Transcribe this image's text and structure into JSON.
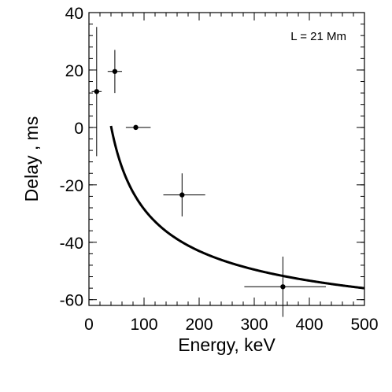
{
  "chart_data": {
    "type": "scatter",
    "title": "",
    "xlabel": "Energy, keV",
    "ylabel": "Delay , ms",
    "xlim": [
      0,
      500
    ],
    "ylim": [
      -62,
      40
    ],
    "xticks": [
      0,
      100,
      200,
      300,
      400,
      500
    ],
    "yticks": [
      -60,
      -40,
      -20,
      0,
      20,
      40
    ],
    "x_minor_step": 20,
    "y_minor_step": 4,
    "grid": false,
    "annotation": "L = 21 Mm",
    "points": [
      {
        "x": 14,
        "y": 12.5,
        "xerr_low": 9,
        "xerr_high": 9,
        "yerr_low": 22.5,
        "yerr_high": 22.5
      },
      {
        "x": 47,
        "y": 19.5,
        "xerr_low": 13,
        "xerr_high": 13,
        "yerr_low": 7.5,
        "yerr_high": 7.5
      },
      {
        "x": 85,
        "y": 0,
        "xerr_low": 18,
        "xerr_high": 27,
        "yerr_low": 0,
        "yerr_high": 0
      },
      {
        "x": 169,
        "y": -23.5,
        "xerr_low": 34,
        "xerr_high": 42,
        "yerr_low": 7.5,
        "yerr_high": 7.5
      },
      {
        "x": 352,
        "y": -55.5,
        "xerr_low": 70,
        "xerr_high": 78,
        "yerr_low": 10.5,
        "yerr_high": 10.5
      }
    ],
    "fit_curve": {
      "form": "y = a / sqrt(x) + b",
      "a": 498.5,
      "b": -78.3,
      "x_start": 40,
      "x_end": 500
    }
  }
}
